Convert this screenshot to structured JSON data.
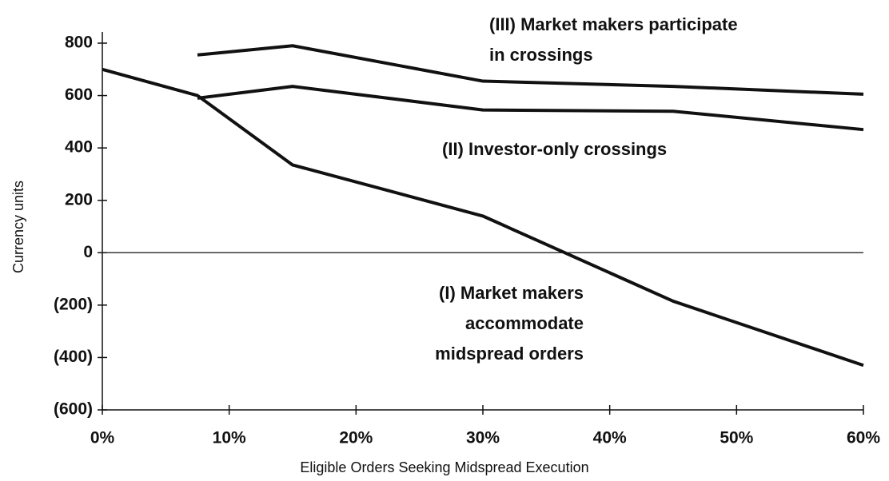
{
  "chart_data": {
    "type": "line",
    "x_label": "Eligible Orders Seeking Midspread Execution",
    "y_label": "Currency units",
    "xlim": [
      0,
      60
    ],
    "xticks": [
      {
        "value": 0,
        "label": "0%"
      },
      {
        "value": 10,
        "label": "10%"
      },
      {
        "value": 20,
        "label": "20%"
      },
      {
        "value": 30,
        "label": "30%"
      },
      {
        "value": 40,
        "label": "40%"
      },
      {
        "value": 50,
        "label": "50%"
      },
      {
        "value": 60,
        "label": "60%"
      }
    ],
    "ylim": [
      -600,
      800
    ],
    "yticks": [
      {
        "value": -600,
        "label": "(600)"
      },
      {
        "value": -400,
        "label": "(400)"
      },
      {
        "value": -200,
        "label": "(200)"
      },
      0,
      200,
      400,
      600,
      800
    ],
    "zero_line": true,
    "series": [
      {
        "name_lines": [
          "(I) Market makers",
          "accommodate",
          "midspread orders"
        ],
        "color": "#111111",
        "x": [
          0,
          7.5,
          15,
          30,
          45,
          60
        ],
        "values": [
          700,
          600,
          335,
          140,
          -185,
          -430
        ]
      },
      {
        "name_lines": [
          "(II) Investor-only crossings"
        ],
        "color": "#111111",
        "x": [
          7.5,
          15,
          30,
          45,
          60
        ],
        "values": [
          590,
          635,
          545,
          540,
          470
        ]
      },
      {
        "name_lines": [
          "(III) Market makers participate",
          "in crossings"
        ],
        "color": "#111111",
        "x": [
          7.5,
          15,
          30,
          45,
          60
        ],
        "values": [
          755,
          790,
          655,
          635,
          605
        ]
      }
    ]
  }
}
